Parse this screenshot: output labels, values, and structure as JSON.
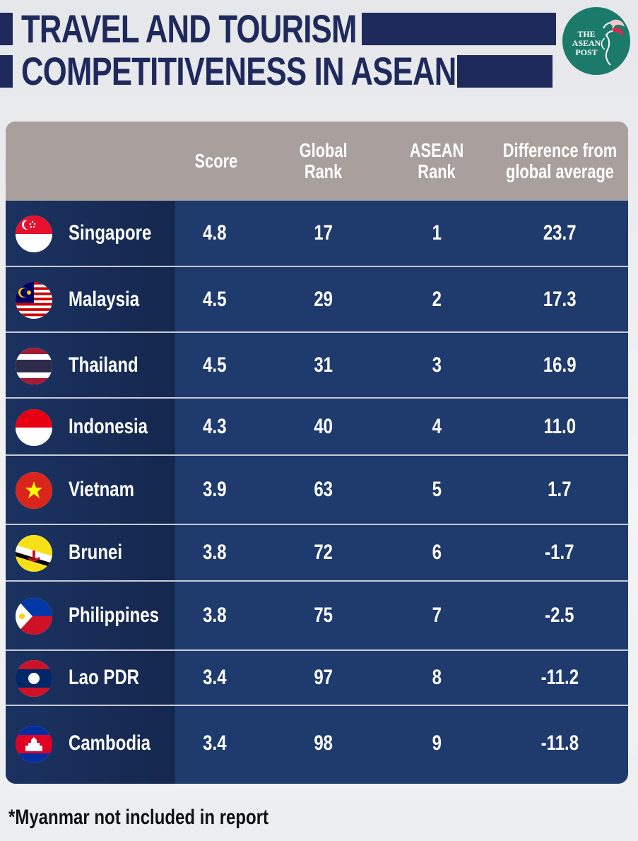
{
  "title": {
    "line1": "TRAVEL AND TOURISM",
    "line2": "COMPETITIVENESS IN ASEAN"
  },
  "logo": {
    "line1": "THE",
    "line2": "ASEAN",
    "line3": "POST"
  },
  "colors": {
    "navy": "#1f2a5c",
    "table_body": "#1f3a6d",
    "header": "#a9a09e",
    "logo_green": "#1b7a6a"
  },
  "chart_data": {
    "type": "table",
    "columns": [
      "Score",
      "Global\nRank",
      "ASEAN\nRank",
      "Difference from\nglobal average"
    ],
    "rows": [
      {
        "country": "Singapore",
        "flag": "singapore-flag-icon",
        "score": "4.8",
        "global_rank": "17",
        "asean_rank": "1",
        "difference": "23.7"
      },
      {
        "country": "Malaysia",
        "flag": "malaysia-flag-icon",
        "score": "4.5",
        "global_rank": "29",
        "asean_rank": "2",
        "difference": "17.3"
      },
      {
        "country": "Thailand",
        "flag": "thailand-flag-icon",
        "score": "4.5",
        "global_rank": "31",
        "asean_rank": "3",
        "difference": "16.9"
      },
      {
        "country": "Indonesia",
        "flag": "indonesia-flag-icon",
        "score": "4.3",
        "global_rank": "40",
        "asean_rank": "4",
        "difference": "11.0"
      },
      {
        "country": "Vietnam",
        "flag": "vietnam-flag-icon",
        "score": "3.9",
        "global_rank": "63",
        "asean_rank": "5",
        "difference": "1.7"
      },
      {
        "country": "Brunei",
        "flag": "brunei-flag-icon",
        "score": "3.8",
        "global_rank": "72",
        "asean_rank": "6",
        "difference": "-1.7"
      },
      {
        "country": "Philippines",
        "flag": "philippines-flag-icon",
        "score": "3.8",
        "global_rank": "75",
        "asean_rank": "7",
        "difference": "-2.5"
      },
      {
        "country": "Lao PDR",
        "flag": "laos-flag-icon",
        "score": "3.4",
        "global_rank": "97",
        "asean_rank": "8",
        "difference": "-11.2"
      },
      {
        "country": "Cambodia",
        "flag": "cambodia-flag-icon",
        "score": "3.4",
        "global_rank": "98",
        "asean_rank": "9",
        "difference": "-11.8"
      }
    ]
  },
  "footnote": "*Myanmar not included in report"
}
